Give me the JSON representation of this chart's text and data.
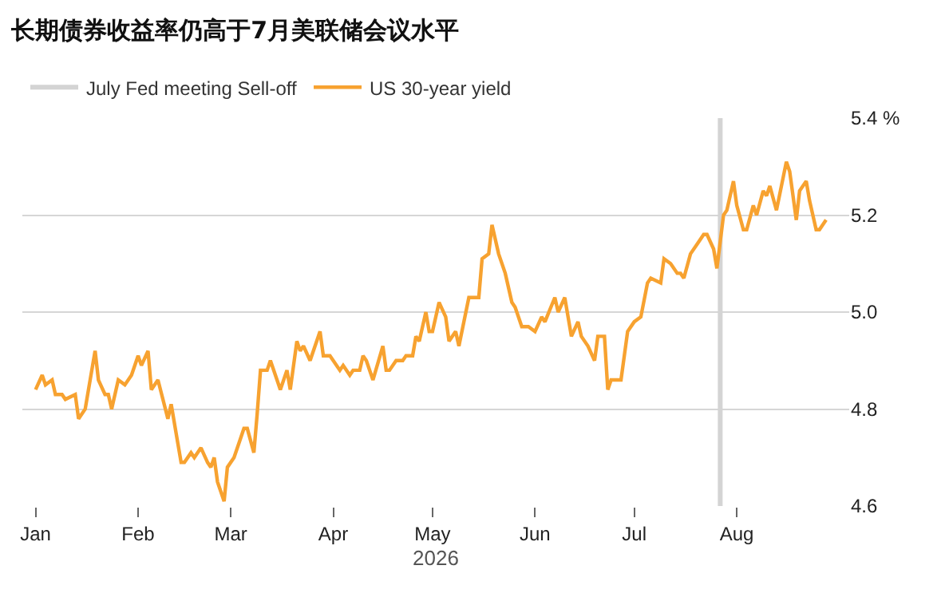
{
  "chart_data": {
    "type": "line",
    "title": "长期债券收益率仍高于7月美联储会议水平",
    "xlabel": "2026",
    "x": [
      "2026-01-01",
      "2026-01-03",
      "2026-01-04",
      "2026-01-06",
      "2026-01-07",
      "2026-01-09",
      "2026-01-10",
      "2026-01-13",
      "2026-01-14",
      "2026-01-16",
      "2026-01-17",
      "2026-01-19",
      "2026-01-20",
      "2026-01-22",
      "2026-01-23",
      "2026-01-24",
      "2026-01-26",
      "2026-01-28",
      "2026-01-30",
      "2026-02-01",
      "2026-02-02",
      "2026-02-04",
      "2026-02-05",
      "2026-02-07",
      "2026-02-10",
      "2026-02-11",
      "2026-02-13",
      "2026-02-14",
      "2026-02-15",
      "2026-02-17",
      "2026-02-18",
      "2026-02-20",
      "2026-02-22",
      "2026-02-23",
      "2026-02-24",
      "2026-02-25",
      "2026-02-27",
      "2026-02-28",
      "2026-03-02",
      "2026-03-04",
      "2026-03-05",
      "2026-03-06",
      "2026-03-08",
      "2026-03-09",
      "2026-03-10",
      "2026-03-12",
      "2026-03-13",
      "2026-03-15",
      "2026-03-16",
      "2026-03-18",
      "2026-03-19",
      "2026-03-21",
      "2026-03-22",
      "2026-03-23",
      "2026-03-25",
      "2026-03-28",
      "2026-03-29",
      "2026-03-31",
      "2026-04-03",
      "2026-04-04",
      "2026-04-06",
      "2026-04-07",
      "2026-04-09",
      "2026-04-10",
      "2026-04-11",
      "2026-04-13",
      "2026-04-16",
      "2026-04-17",
      "2026-04-18",
      "2026-04-20",
      "2026-04-22",
      "2026-04-23",
      "2026-04-25",
      "2026-04-26",
      "2026-04-27",
      "2026-04-29",
      "2026-04-30",
      "2026-05-01",
      "2026-05-03",
      "2026-05-05",
      "2026-05-06",
      "2026-05-08",
      "2026-05-09",
      "2026-05-12",
      "2026-05-13",
      "2026-05-15",
      "2026-05-16",
      "2026-05-18",
      "2026-05-19",
      "2026-05-21",
      "2026-05-23",
      "2026-05-25",
      "2026-05-26",
      "2026-05-28",
      "2026-05-30",
      "2026-06-01",
      "2026-06-03",
      "2026-06-04",
      "2026-06-07",
      "2026-06-08",
      "2026-06-10",
      "2026-06-12",
      "2026-06-14",
      "2026-06-15",
      "2026-06-17",
      "2026-06-19",
      "2026-06-20",
      "2026-06-22",
      "2026-06-23",
      "2026-06-24",
      "2026-06-27",
      "2026-06-29",
      "2026-07-01",
      "2026-07-03",
      "2026-07-05",
      "2026-07-06",
      "2026-07-09",
      "2026-07-10",
      "2026-07-12",
      "2026-07-14",
      "2026-07-15",
      "2026-07-16",
      "2026-07-18",
      "2026-07-20",
      "2026-07-22",
      "2026-07-23",
      "2026-07-25",
      "2026-07-26",
      "2026-07-28",
      "2026-07-29",
      "2026-07-31",
      "2026-08-01",
      "2026-08-03",
      "2026-08-04",
      "2026-08-06",
      "2026-08-07",
      "2026-08-09",
      "2026-08-10",
      "2026-08-11",
      "2026-08-13",
      "2026-08-16",
      "2026-08-17",
      "2026-08-19",
      "2026-08-20",
      "2026-08-22",
      "2026-08-23",
      "2026-08-25",
      "2026-08-26",
      "2026-08-28"
    ],
    "series": [
      {
        "name": "US 30-year yield",
        "color": "#f7a230",
        "values": [
          4.84,
          4.87,
          4.85,
          4.86,
          4.83,
          4.83,
          4.82,
          4.83,
          4.78,
          4.8,
          4.84,
          4.92,
          4.86,
          4.83,
          4.83,
          4.8,
          4.86,
          4.85,
          4.87,
          4.91,
          4.89,
          4.92,
          4.84,
          4.86,
          4.78,
          4.81,
          4.73,
          4.69,
          4.69,
          4.71,
          4.7,
          4.72,
          4.69,
          4.68,
          4.7,
          4.65,
          4.61,
          4.68,
          4.7,
          4.74,
          4.76,
          4.76,
          4.71,
          4.79,
          4.88,
          4.88,
          4.9,
          4.86,
          4.84,
          4.88,
          4.84,
          4.94,
          4.92,
          4.93,
          4.9,
          4.96,
          4.91,
          4.91,
          4.88,
          4.89,
          4.87,
          4.88,
          4.88,
          4.91,
          4.9,
          4.86,
          4.93,
          4.88,
          4.88,
          4.9,
          4.9,
          4.91,
          4.91,
          4.95,
          4.94,
          5.0,
          4.96,
          4.96,
          5.02,
          4.99,
          4.94,
          4.96,
          4.93,
          5.03,
          5.03,
          5.03,
          5.11,
          5.12,
          5.18,
          5.12,
          5.08,
          5.02,
          5.01,
          4.97,
          4.97,
          4.96,
          4.99,
          4.98,
          5.03,
          5.0,
          5.03,
          4.95,
          4.98,
          4.95,
          4.93,
          4.9,
          4.95,
          4.95,
          4.84,
          4.86,
          4.86,
          4.96,
          4.98,
          4.99,
          5.06,
          5.07,
          5.06,
          5.11,
          5.1,
          5.08,
          5.08,
          5.07,
          5.12,
          5.14,
          5.16,
          5.16,
          5.13,
          5.09,
          5.2,
          5.21,
          5.27,
          5.22,
          5.17,
          5.17,
          5.22,
          5.2,
          5.25,
          5.24,
          5.26,
          5.21,
          5.31,
          5.29,
          5.19,
          5.25,
          5.27,
          5.23,
          5.17,
          5.17,
          5.19
        ]
      }
    ],
    "ref_lines": [
      {
        "axis": "x",
        "value": "2026-07-27",
        "label": "July Fed meeting Sell-off",
        "color": "#d4d4d4"
      }
    ],
    "xlim": [
      "2025-12-28",
      "2026-09-04"
    ],
    "xticks": [
      {
        "value": "2026-01-01",
        "label": "Jan"
      },
      {
        "value": "2026-02-01",
        "label": "Feb"
      },
      {
        "value": "2026-03-01",
        "label": "Mar"
      },
      {
        "value": "2026-04-01",
        "label": "Apr"
      },
      {
        "value": "2026-05-01",
        "label": "May"
      },
      {
        "value": "2026-06-01",
        "label": "Jun"
      },
      {
        "value": "2026-07-01",
        "label": "Jul"
      },
      {
        "value": "2026-08-01",
        "label": "Aug"
      }
    ],
    "ylim": [
      4.6,
      5.4
    ],
    "yticks": [
      4.6,
      4.8,
      {
        "value": 5.0,
        "label": "5.0"
      },
      5.2,
      {
        "value": 5.4,
        "label": "5.4 %"
      }
    ],
    "grid": "y",
    "legend": "top left",
    "line_style": "solid",
    "marker": "none"
  }
}
